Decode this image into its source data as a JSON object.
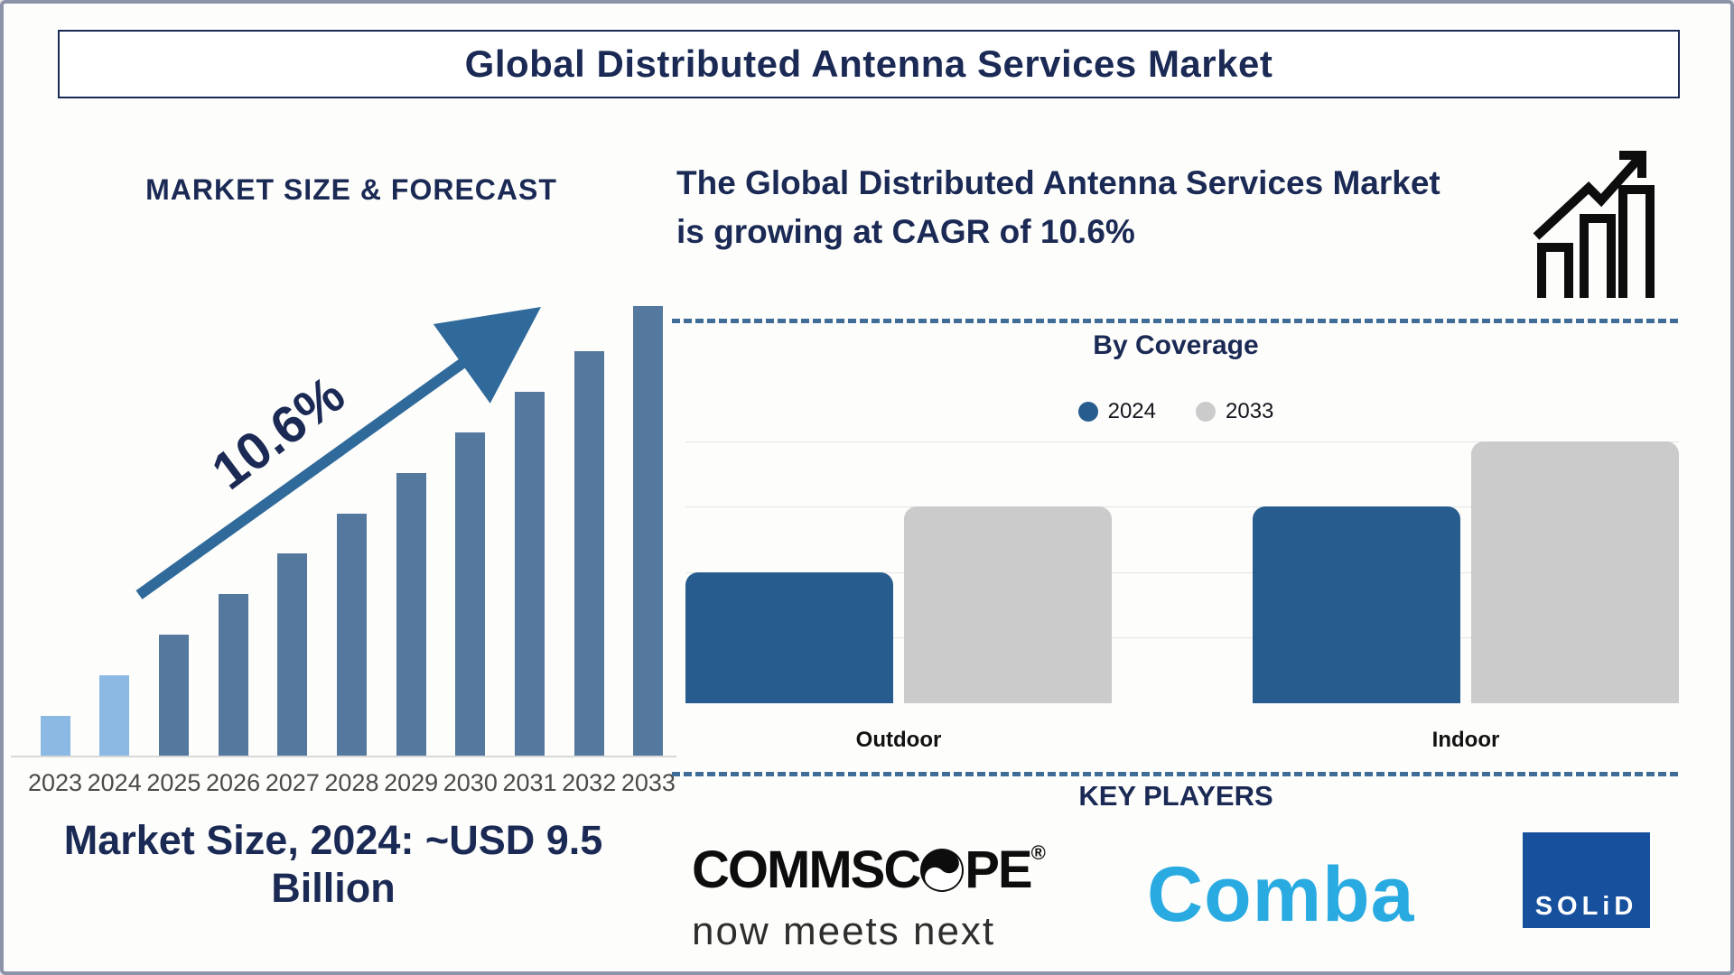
{
  "title": "Global Distributed Antenna Services Market",
  "colors": {
    "navy": "#1B2A55",
    "bar-light": "#8CB9E4",
    "bar-steel": "#55789E",
    "arrow": "#2F6A9B",
    "c2024": "#275D8E",
    "c2033": "#CBCBCB",
    "dash": "#3F6D97",
    "comba": "#29ABE2",
    "solidnavy": "#17519E"
  },
  "left_panel": {
    "heading": "MARKET SIZE & FORECAST",
    "growth_annotation": "10.6%",
    "caption": "Market Size, 2024: ~USD 9.5 Billion"
  },
  "right_panel": {
    "summary": "The Global Distributed Antenna Services Market is growing at CAGR of 10.6%",
    "coverage_title": "By Coverage",
    "key_players_heading": "KEY PLAYERS",
    "players": {
      "commscope_name": "COMMSCOPE",
      "commscope_reg": "®",
      "commscope_tagline": "now meets next",
      "comba_name": "Comba",
      "solid_name": "SOLiD"
    }
  },
  "chart_data": [
    {
      "type": "bar",
      "title": "MARKET SIZE & FORECAST",
      "categories": [
        "2023",
        "2024",
        "2025",
        "2026",
        "2027",
        "2028",
        "2029",
        "2030",
        "2031",
        "2032",
        "2033"
      ],
      "values": [
        9,
        18,
        27,
        36,
        45,
        54,
        63,
        72,
        81,
        90,
        100
      ],
      "ylim": [
        0,
        100
      ],
      "xlabel": "",
      "ylabel": "",
      "value_units": "relative bar height, % of 2033 bar (no value axis shown)",
      "annotation": "10.6% CAGR arrow",
      "note": "Market Size, 2024: ~USD 9.5 Billion",
      "bar_colors": [
        "#8CB9E4",
        "#8CB9E4",
        "#55789E",
        "#55789E",
        "#55789E",
        "#55789E",
        "#55789E",
        "#55789E",
        "#55789E",
        "#55789E",
        "#55789E"
      ],
      "grid": false,
      "legend": false
    },
    {
      "type": "bar",
      "title": "By Coverage",
      "categories": [
        "Outdoor",
        "Indoor"
      ],
      "series": [
        {
          "name": "2024",
          "values": [
            2,
            3
          ],
          "color": "#275D8E"
        },
        {
          "name": "2033",
          "values": [
            3,
            4
          ],
          "color": "#CBCBCB"
        }
      ],
      "ylim": [
        0,
        4
      ],
      "xlabel": "",
      "ylabel": "",
      "value_units": "relative gridline units (no value axis labels shown)",
      "grid": true,
      "legend_position": "top"
    }
  ]
}
